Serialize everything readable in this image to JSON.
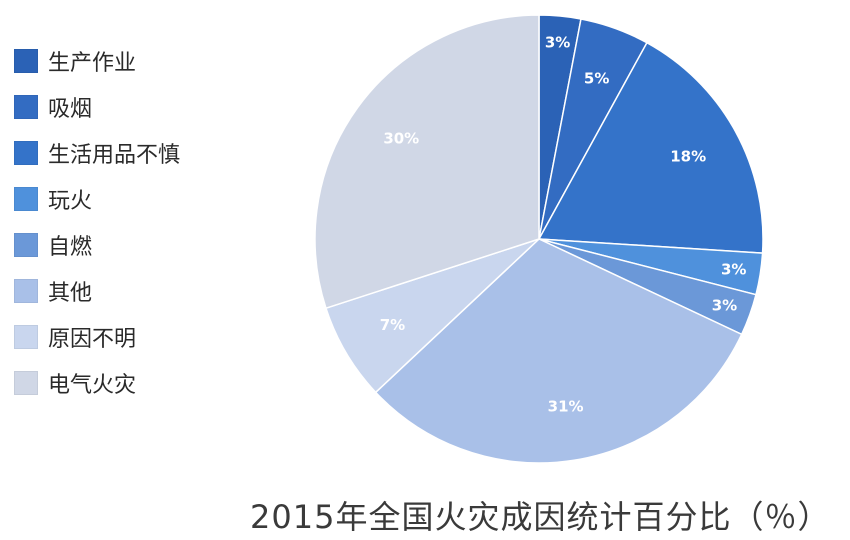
{
  "chart_data": {
    "type": "pie",
    "title": "2015年全国火灾成因统计百分比（％）",
    "start": "12 o'clock",
    "direction": "clockwise",
    "slices": [
      {
        "name": "生产作业",
        "value": 3,
        "label": "3%",
        "color": "#2b62b6"
      },
      {
        "name": "吸烟",
        "value": 5,
        "label": "5%",
        "color": "#336cc2"
      },
      {
        "name": "生活用品不慎",
        "value": 18,
        "label": "18%",
        "color": "#3473c9"
      },
      {
        "name": "玩火",
        "value": 3,
        "label": "3%",
        "color": "#4f91dc"
      },
      {
        "name": "自燃",
        "value": 3,
        "label": "3%",
        "color": "#6b98d8"
      },
      {
        "name": "其他",
        "value": 31,
        "label": "31%",
        "color": "#a9c0e8"
      },
      {
        "name": "原因不明",
        "value": 7,
        "label": "7%",
        "color": "#c9d6ee"
      },
      {
        "name": "电气火灾",
        "value": 30,
        "label": "30%",
        "color": "#d0d7e6"
      }
    ]
  }
}
